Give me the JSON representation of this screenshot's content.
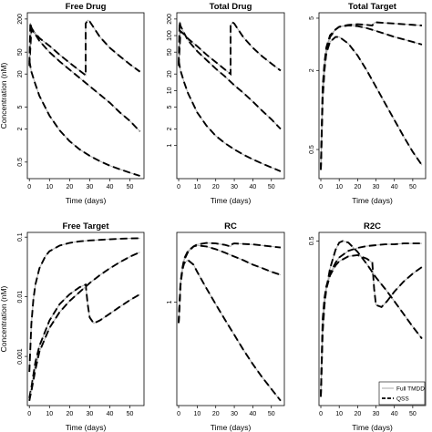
{
  "figure": {
    "background": "#ffffff"
  },
  "chart_data": [
    {
      "type": "line",
      "title": "Free Drug",
      "xlabel": "Time (days)",
      "ylabel": "Concentration (nM)",
      "xlim": [
        -1,
        57
      ],
      "ylim": [
        0.25,
        260
      ],
      "log_y": true,
      "x_ticks": [
        "0",
        "10",
        "20",
        "30",
        "40",
        "50"
      ],
      "y_ticks": [
        "0.5",
        "2",
        "5",
        "20",
        "50",
        "200"
      ],
      "y_tick_values": [
        0.5,
        2,
        5,
        20,
        50,
        200
      ],
      "series": [
        {
          "style": "dashed",
          "x": [
            0,
            1,
            3,
            5,
            10,
            15,
            20,
            25,
            28,
            28,
            29,
            30,
            32,
            35,
            40,
            45,
            50,
            55
          ],
          "y": [
            28,
            125,
            110,
            90,
            65,
            45,
            32,
            23,
            19,
            165,
            190,
            180,
            140,
            95,
            60,
            42,
            30,
            22
          ]
        },
        {
          "style": "dashed",
          "x": [
            0,
            0.5,
            1,
            3,
            5,
            10,
            15,
            20,
            25,
            30,
            35,
            40,
            45,
            50,
            55
          ],
          "y": [
            30,
            170,
            140,
            105,
            80,
            50,
            34,
            24,
            17,
            12,
            8.5,
            6,
            4,
            2.8,
            1.8
          ]
        },
        {
          "style": "dashed",
          "x": [
            0,
            1,
            3,
            5,
            10,
            15,
            20,
            25,
            30,
            35,
            40,
            45,
            50,
            55
          ],
          "y": [
            35,
            22,
            13,
            8,
            3.5,
            1.9,
            1.2,
            0.85,
            0.65,
            0.52,
            0.43,
            0.37,
            0.32,
            0.28
          ]
        }
      ]
    },
    {
      "type": "line",
      "title": "Total Drug",
      "xlabel": "Time (days)",
      "ylabel": "",
      "xlim": [
        -1,
        57
      ],
      "ylim": [
        0.25,
        260
      ],
      "log_y": true,
      "x_ticks": [
        "0",
        "10",
        "20",
        "30",
        "40",
        "50"
      ],
      "y_ticks": [
        "1",
        "2",
        "5",
        "10",
        "20",
        "50",
        "100",
        "200"
      ],
      "y_tick_values": [
        1,
        2,
        5,
        10,
        20,
        50,
        100,
        200
      ],
      "series": [
        {
          "style": "dashed",
          "x": [
            0,
            1,
            3,
            5,
            10,
            15,
            20,
            25,
            28,
            28,
            29,
            30,
            32,
            35,
            40,
            45,
            50,
            55
          ],
          "y": [
            28,
            120,
            105,
            88,
            64,
            45,
            33,
            24,
            20,
            150,
            175,
            165,
            130,
            92,
            60,
            42,
            31,
            23
          ]
        },
        {
          "style": "dashed",
          "x": [
            0,
            0.5,
            1,
            3,
            5,
            10,
            15,
            20,
            25,
            30,
            35,
            40,
            45,
            50,
            55
          ],
          "y": [
            30,
            180,
            150,
            110,
            82,
            52,
            36,
            25,
            18,
            12.5,
            9,
            6.3,
            4.3,
            3,
            2
          ]
        },
        {
          "style": "dashed",
          "x": [
            0,
            1,
            3,
            5,
            10,
            15,
            20,
            25,
            30,
            35,
            40,
            45,
            50,
            55
          ],
          "y": [
            35,
            23,
            14,
            9,
            4,
            2.3,
            1.5,
            1.1,
            0.85,
            0.68,
            0.56,
            0.47,
            0.4,
            0.34
          ]
        }
      ]
    },
    {
      "type": "line",
      "title": "Total Target",
      "xlabel": "Time (days)",
      "ylabel": "",
      "xlim": [
        -1,
        57
      ],
      "ylim": [
        0.3,
        5.5
      ],
      "log_y": true,
      "x_ticks": [
        "0",
        "10",
        "20",
        "30",
        "40",
        "50"
      ],
      "y_ticks": [
        "0.5",
        "2",
        "5"
      ],
      "y_tick_values": [
        0.5,
        2,
        5
      ],
      "series": [
        {
          "style": "dashed",
          "x": [
            0,
            1,
            2,
            3,
            5,
            8,
            10,
            15,
            20,
            25,
            28,
            29,
            30,
            35,
            40,
            45,
            50,
            55
          ],
          "y": [
            0.35,
            1.2,
            2,
            2.8,
            3.6,
            4.1,
            4.3,
            4.45,
            4.5,
            4.45,
            4.4,
            4.6,
            4.65,
            4.6,
            4.55,
            4.5,
            4.45,
            4.4
          ]
        },
        {
          "style": "dashed",
          "x": [
            0,
            1,
            2,
            3,
            5,
            8,
            10,
            15,
            20,
            25,
            30,
            35,
            40,
            45,
            50,
            55
          ],
          "y": [
            0.35,
            1.5,
            2.3,
            3,
            3.7,
            4.1,
            4.3,
            4.4,
            4.35,
            4.2,
            4,
            3.8,
            3.6,
            3.45,
            3.3,
            3.15
          ]
        },
        {
          "style": "dashed",
          "x": [
            0,
            1,
            2,
            3,
            5,
            8,
            10,
            15,
            20,
            25,
            30,
            35,
            40,
            45,
            50,
            55
          ],
          "y": [
            0.35,
            1.3,
            2.1,
            2.7,
            3.3,
            3.6,
            3.6,
            3.2,
            2.6,
            2,
            1.5,
            1.12,
            0.84,
            0.63,
            0.48,
            0.38
          ]
        }
      ]
    },
    {
      "type": "line",
      "title": "Free Target",
      "xlabel": "Time (days)",
      "ylabel": "Concentration (nM)",
      "xlim": [
        -1,
        57
      ],
      "ylim": [
        0.00015,
        0.12
      ],
      "log_y": true,
      "x_ticks": [
        "0",
        "10",
        "20",
        "30",
        "40",
        "50"
      ],
      "y_ticks": [
        "0.001",
        "0.01",
        "0.1"
      ],
      "y_tick_values": [
        0.001,
        0.01,
        0.1
      ],
      "series": [
        {
          "style": "dashed",
          "x": [
            0,
            1,
            2,
            3,
            5,
            8,
            10,
            15,
            20,
            25,
            30,
            35,
            40,
            45,
            50,
            55
          ],
          "y": [
            0.00055,
            0.0035,
            0.009,
            0.016,
            0.03,
            0.048,
            0.058,
            0.072,
            0.08,
            0.085,
            0.088,
            0.09,
            0.092,
            0.094,
            0.095,
            0.096
          ]
        },
        {
          "style": "dashed",
          "x": [
            0,
            0.5,
            1,
            3,
            5,
            10,
            15,
            20,
            25,
            28,
            29,
            30,
            32,
            35,
            40,
            45,
            50,
            55
          ],
          "y": [
            0.0002,
            0.00025,
            0.0003,
            0.0008,
            0.0015,
            0.004,
            0.0075,
            0.011,
            0.0145,
            0.016,
            0.0075,
            0.0045,
            0.0036,
            0.004,
            0.0052,
            0.0068,
            0.0088,
            0.011
          ]
        },
        {
          "style": "dashed",
          "x": [
            0,
            0.5,
            1,
            3,
            5,
            10,
            15,
            20,
            25,
            30,
            35,
            40,
            45,
            50,
            55
          ],
          "y": [
            0.00018,
            0.00022,
            0.00026,
            0.0006,
            0.0012,
            0.003,
            0.0055,
            0.0085,
            0.012,
            0.017,
            0.023,
            0.03,
            0.038,
            0.047,
            0.056
          ]
        }
      ]
    },
    {
      "type": "line",
      "title": "RC",
      "xlabel": "Time (days)",
      "ylabel": "",
      "xlim": [
        -1,
        57
      ],
      "ylim": [
        0.08,
        5.5
      ],
      "log_y": true,
      "x_ticks": [
        "0",
        "10",
        "20",
        "30",
        "40",
        "50"
      ],
      "y_ticks": [
        "1"
      ],
      "y_tick_values": [
        1
      ],
      "series": [
        {
          "style": "dashed",
          "x": [
            0,
            1,
            2,
            3,
            5,
            8,
            10,
            15,
            20,
            25,
            28,
            29,
            30,
            35,
            40,
            45,
            50,
            55
          ],
          "y": [
            0.6,
            1.5,
            2.2,
            2.8,
            3.4,
            3.9,
            4.1,
            4.25,
            4.2,
            4.05,
            3.9,
            4.15,
            4.2,
            4.15,
            4.1,
            4,
            3.9,
            3.8
          ]
        },
        {
          "style": "dashed",
          "x": [
            0,
            1,
            2,
            3,
            5,
            8,
            10,
            15,
            20,
            25,
            30,
            35,
            40,
            45,
            50,
            55
          ],
          "y": [
            0.6,
            1.6,
            2.3,
            2.9,
            3.5,
            3.9,
            4,
            3.9,
            3.65,
            3.35,
            3.05,
            2.78,
            2.5,
            2.3,
            2.1,
            1.95
          ]
        },
        {
          "style": "dashed",
          "x": [
            0,
            1,
            2,
            3,
            5,
            8,
            10,
            15,
            20,
            25,
            30,
            35,
            40,
            45,
            50,
            55
          ],
          "y": [
            0.6,
            1.6,
            2.2,
            2.6,
            2.8,
            2.5,
            2.1,
            1.4,
            0.95,
            0.65,
            0.45,
            0.31,
            0.22,
            0.16,
            0.12,
            0.09
          ]
        }
      ]
    },
    {
      "type": "line",
      "title": "R2C",
      "xlabel": "Time (days)",
      "ylabel": "",
      "xlim": [
        -1,
        57
      ],
      "ylim": [
        0.008,
        0.62
      ],
      "log_y": true,
      "x_ticks": [
        "0",
        "10",
        "20",
        "30",
        "40",
        "50"
      ],
      "y_ticks": [
        "0.5"
      ],
      "y_tick_values": [
        0.5
      ],
      "series": [
        {
          "style": "dashed",
          "x": [
            0,
            1,
            2,
            3,
            5,
            8,
            10,
            15,
            20,
            25,
            30,
            35,
            40,
            45,
            50,
            55
          ],
          "y": [
            0.01,
            0.07,
            0.12,
            0.16,
            0.22,
            0.29,
            0.33,
            0.39,
            0.42,
            0.44,
            0.45,
            0.46,
            0.46,
            0.47,
            0.47,
            0.47
          ]
        },
        {
          "style": "dashed",
          "x": [
            0,
            1,
            2,
            3,
            5,
            8,
            10,
            15,
            20,
            25,
            28,
            29,
            30,
            33,
            36,
            40,
            45,
            50,
            55
          ],
          "y": [
            0.01,
            0.06,
            0.11,
            0.15,
            0.21,
            0.27,
            0.3,
            0.34,
            0.35,
            0.32,
            0.29,
            0.15,
            0.1,
            0.095,
            0.11,
            0.14,
            0.18,
            0.22,
            0.26
          ]
        },
        {
          "style": "dashed",
          "x": [
            0,
            1,
            2,
            3,
            5,
            8,
            10,
            12,
            15,
            20,
            25,
            30,
            35,
            40,
            45,
            50,
            55
          ],
          "y": [
            0.01,
            0.05,
            0.1,
            0.15,
            0.25,
            0.4,
            0.48,
            0.5,
            0.48,
            0.38,
            0.28,
            0.2,
            0.15,
            0.11,
            0.08,
            0.058,
            0.043
          ]
        }
      ]
    }
  ],
  "legend": {
    "entries": [
      {
        "label": "Full TMDD",
        "color": "#aaaaaa",
        "style": "solid"
      },
      {
        "label": "QSS",
        "color": "#000000",
        "style": "dashed"
      }
    ]
  }
}
